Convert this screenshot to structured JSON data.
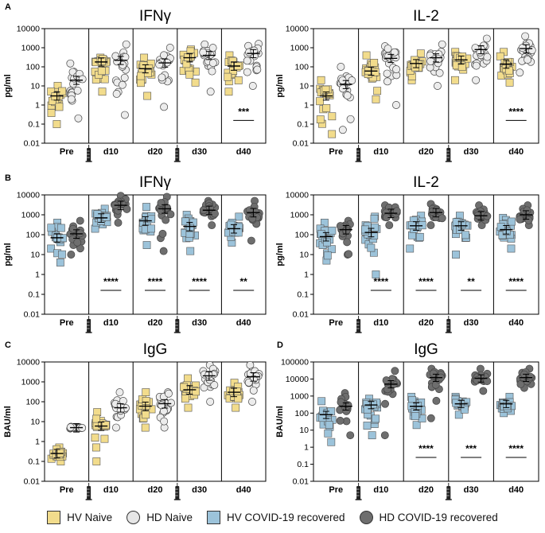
{
  "figure": {
    "legend": [
      {
        "label": "HV Naive",
        "shape": "square",
        "color": "#f2dc8c"
      },
      {
        "label": "HD Naive",
        "shape": "circle",
        "color": "#e6e6e6"
      },
      {
        "label": "HV COVID-19 recovered",
        "shape": "square",
        "color": "#9cc3da"
      },
      {
        "label": "HD COVID-19 recovered",
        "shape": "circle",
        "color": "#6e6e6e"
      }
    ]
  },
  "chart_data": [
    {
      "panel": "A",
      "type": "scatter",
      "title": "IFNγ",
      "ylabel": "pg/ml",
      "yscale": "log",
      "ylim": [
        0.01,
        10000
      ],
      "yticks": [
        "0.01",
        "0.1",
        "1",
        "10",
        "100",
        "1000",
        "10000"
      ],
      "categories": [
        "Pre",
        "d10",
        "d20",
        "d30",
        "d40"
      ],
      "syringes_after": [
        "Pre",
        "d20"
      ],
      "series": [
        {
          "name": "HV Naive",
          "shape": "square",
          "color": "#f2dc8c",
          "medians": [
            3,
            180,
            80,
            300,
            110
          ],
          "spread_low": [
            0.1,
            5,
            3,
            15,
            5
          ],
          "spread_high": [
            10,
            300,
            300,
            800,
            400
          ]
        },
        {
          "name": "HD Naive",
          "shape": "circle",
          "color": "#ececec",
          "medians": [
            20,
            220,
            160,
            400,
            500
          ],
          "spread_low": [
            0.2,
            0.3,
            0.8,
            5,
            10
          ],
          "spread_high": [
            150,
            1500,
            1000,
            1500,
            1600
          ]
        }
      ],
      "significance": [
        "",
        "",
        "",
        "",
        "***"
      ]
    },
    {
      "panel": "",
      "type": "scatter",
      "title": "IL-2",
      "ylabel": "pg/ml",
      "yscale": "log",
      "ylim": [
        0.01,
        10000
      ],
      "yticks": [
        "0.01",
        "0.1",
        "1",
        "10",
        "100",
        "1000",
        "10000"
      ],
      "categories": [
        "Pre",
        "d10",
        "d20",
        "d30",
        "d40"
      ],
      "syringes_after": [
        "Pre",
        "d20"
      ],
      "series": [
        {
          "name": "HV Naive",
          "shape": "square",
          "color": "#f2dc8c",
          "medians": [
            3,
            60,
            150,
            230,
            140
          ],
          "spread_low": [
            0.03,
            2,
            20,
            20,
            15
          ],
          "spread_high": [
            20,
            400,
            500,
            600,
            600
          ]
        },
        {
          "name": "HD Naive",
          "shape": "circle",
          "color": "#ececec",
          "medians": [
            12,
            280,
            300,
            800,
            900
          ],
          "spread_low": [
            0.05,
            1,
            10,
            20,
            50
          ],
          "spread_high": [
            100,
            1200,
            1500,
            3000,
            4000
          ]
        }
      ],
      "significance": [
        "",
        "",
        "",
        "",
        "****"
      ]
    },
    {
      "panel": "B",
      "type": "scatter",
      "title": "IFNγ",
      "ylabel": "pg/ml",
      "yscale": "log",
      "ylim": [
        0.01,
        10000
      ],
      "yticks": [
        "0.01",
        "0.1",
        "1",
        "10",
        "100",
        "1000",
        "10000"
      ],
      "categories": [
        "Pre",
        "d10",
        "d20",
        "d30",
        "d40"
      ],
      "syringes_after": [
        "Pre",
        "d20"
      ],
      "series": [
        {
          "name": "HV COVID-19 recovered",
          "shape": "square",
          "color": "#9cc3da",
          "medians": [
            70,
            700,
            500,
            260,
            200
          ],
          "spread_low": [
            4,
            200,
            30,
            15,
            40
          ],
          "spread_high": [
            400,
            2000,
            2500,
            1000,
            800
          ]
        },
        {
          "name": "HD COVID-19 recovered",
          "shape": "circle",
          "color": "#6e6e6e",
          "medians": [
            110,
            3000,
            2000,
            1700,
            1300
          ],
          "spread_low": [
            10,
            400,
            15,
            300,
            50
          ],
          "spread_high": [
            500,
            9000,
            8000,
            5000,
            5000
          ]
        }
      ],
      "significance": [
        "",
        "****",
        "****",
        "****",
        "**"
      ]
    },
    {
      "panel": "",
      "type": "scatter",
      "title": "IL-2",
      "ylabel": "pg/ml",
      "yscale": "log",
      "ylim": [
        0.01,
        10000
      ],
      "yticks": [
        "0.01",
        "0.1",
        "1",
        "10",
        "100",
        "1000",
        "10000"
      ],
      "categories": [
        "Pre",
        "d10",
        "d20",
        "d30",
        "d40"
      ],
      "syringes_after": [
        "Pre",
        "d20"
      ],
      "series": [
        {
          "name": "HV COVID-19 recovered",
          "shape": "square",
          "color": "#9cc3da",
          "medians": [
            80,
            130,
            280,
            280,
            180
          ],
          "spread_low": [
            5,
            1,
            20,
            10,
            20
          ],
          "spread_high": [
            400,
            800,
            900,
            900,
            700
          ]
        },
        {
          "name": "HD COVID-19 recovered",
          "shape": "circle",
          "color": "#6e6e6e",
          "medians": [
            180,
            1200,
            1300,
            900,
            1000
          ],
          "spread_low": [
            10,
            300,
            300,
            300,
            300
          ],
          "spread_high": [
            500,
            3000,
            3500,
            3000,
            3000
          ]
        }
      ],
      "significance": [
        "",
        "****",
        "****",
        "**",
        "****"
      ]
    },
    {
      "panel": "C",
      "type": "scatter",
      "title": "IgG",
      "ylabel": "BAU/ml",
      "yscale": "log",
      "ylim": [
        0.01,
        10000
      ],
      "yticks": [
        "0.01",
        "0.1",
        "1",
        "10",
        "100",
        "1000",
        "10000"
      ],
      "categories": [
        "Pre",
        "d10",
        "d20",
        "d30",
        "d40"
      ],
      "syringes_after": [
        "Pre",
        "d20"
      ],
      "series": [
        {
          "name": "HV Naive",
          "shape": "square",
          "color": "#f2dc8c",
          "medians": [
            0.25,
            6,
            60,
            400,
            300
          ],
          "spread_low": [
            0.1,
            0.1,
            5,
            50,
            50
          ],
          "spread_high": [
            0.5,
            30,
            300,
            1500,
            900
          ]
        },
        {
          "name": "HD Naive",
          "shape": "circle",
          "color": "#ececec",
          "medians": [
            5,
            50,
            80,
            2000,
            1800
          ],
          "spread_low": [
            4.5,
            5,
            5,
            100,
            100
          ],
          "spread_high": [
            5.5,
            300,
            300,
            7000,
            7000
          ]
        }
      ],
      "significance": [
        "",
        "",
        "",
        "",
        ""
      ]
    },
    {
      "panel": "D",
      "type": "scatter",
      "title": "IgG",
      "ylabel": "BAU/ml",
      "yscale": "log",
      "ylim": [
        0.01,
        100000
      ],
      "yticks": [
        "0.01",
        "0.1",
        "1",
        "10",
        "100",
        "1000",
        "10000",
        "100000"
      ],
      "categories": [
        "Pre",
        "d10",
        "d20",
        "d30",
        "d40"
      ],
      "syringes_after": [
        "Pre",
        "d20"
      ],
      "series": [
        {
          "name": "HV COVID-19 recovered",
          "shape": "square",
          "color": "#9cc3da",
          "medians": [
            80,
            300,
            250,
            350,
            350
          ],
          "spread_low": [
            2,
            5,
            20,
            80,
            100
          ],
          "spread_high": [
            500,
            700,
            900,
            900,
            900
          ]
        },
        {
          "name": "HD COVID-19 recovered",
          "shape": "circle",
          "color": "#6e6e6e",
          "medians": [
            250,
            5000,
            12000,
            11000,
            12000
          ],
          "spread_low": [
            5,
            5,
            50,
            2000,
            3000
          ],
          "spread_high": [
            1500,
            30000,
            40000,
            40000,
            40000
          ]
        }
      ],
      "significance": [
        "",
        "",
        "****",
        "***",
        "****"
      ]
    }
  ]
}
